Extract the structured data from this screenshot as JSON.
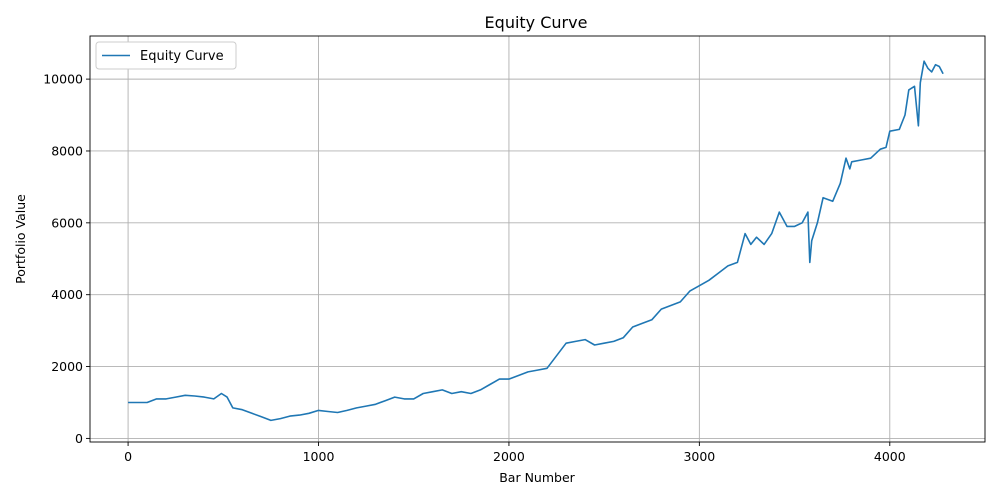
{
  "chart_data": {
    "type": "line",
    "title": "Equity Curve",
    "xlabel": "Bar Number",
    "ylabel": "Portfolio Value",
    "xlim": [
      -200,
      4500
    ],
    "ylim": [
      -100,
      11200
    ],
    "xticks": [
      0,
      1000,
      2000,
      3000,
      4000
    ],
    "yticks": [
      0,
      2000,
      4000,
      6000,
      8000,
      10000
    ],
    "grid": true,
    "legend": "top-left",
    "color": "#1f77b4",
    "series": [
      {
        "name": "Equity Curve",
        "x": [
          0,
          100,
          150,
          200,
          250,
          300,
          350,
          400,
          450,
          490,
          520,
          550,
          600,
          650,
          700,
          750,
          800,
          850,
          900,
          950,
          1000,
          1050,
          1100,
          1150,
          1200,
          1250,
          1300,
          1350,
          1400,
          1450,
          1500,
          1550,
          1600,
          1650,
          1700,
          1750,
          1800,
          1850,
          1900,
          1950,
          2000,
          2050,
          2100,
          2150,
          2200,
          2250,
          2300,
          2350,
          2400,
          2450,
          2500,
          2550,
          2600,
          2650,
          2700,
          2750,
          2800,
          2850,
          2900,
          2950,
          3000,
          3050,
          3100,
          3150,
          3200,
          3240,
          3270,
          3300,
          3340,
          3380,
          3420,
          3460,
          3500,
          3540,
          3570,
          3580,
          3590,
          3620,
          3650,
          3700,
          3740,
          3770,
          3790,
          3800,
          3850,
          3900,
          3950,
          3980,
          4000,
          4050,
          4080,
          4100,
          4130,
          4150,
          4160,
          4180,
          4200,
          4220,
          4240,
          4260,
          4280
        ],
        "y": [
          1000,
          1000,
          1100,
          1100,
          1150,
          1200,
          1180,
          1150,
          1100,
          1250,
          1150,
          850,
          800,
          700,
          600,
          500,
          550,
          620,
          650,
          700,
          780,
          750,
          720,
          780,
          850,
          900,
          950,
          1050,
          1150,
          1100,
          1100,
          1250,
          1300,
          1350,
          1250,
          1300,
          1250,
          1350,
          1500,
          1650,
          1650,
          1750,
          1850,
          1900,
          1950,
          2300,
          2650,
          2700,
          2750,
          2600,
          2650,
          2700,
          2800,
          3100,
          3200,
          3300,
          3600,
          3700,
          3800,
          4100,
          4250,
          4400,
          4600,
          4800,
          4900,
          5700,
          5400,
          5600,
          5400,
          5700,
          6300,
          5900,
          5900,
          6000,
          6300,
          4900,
          5500,
          6000,
          6700,
          6600,
          7100,
          7800,
          7500,
          7700,
          7750,
          7800,
          8050,
          8100,
          8550,
          8600,
          9000,
          9700,
          9800,
          8700,
          9900,
          10500,
          10300,
          10200,
          10400,
          10350,
          10150
        ]
      }
    ]
  }
}
